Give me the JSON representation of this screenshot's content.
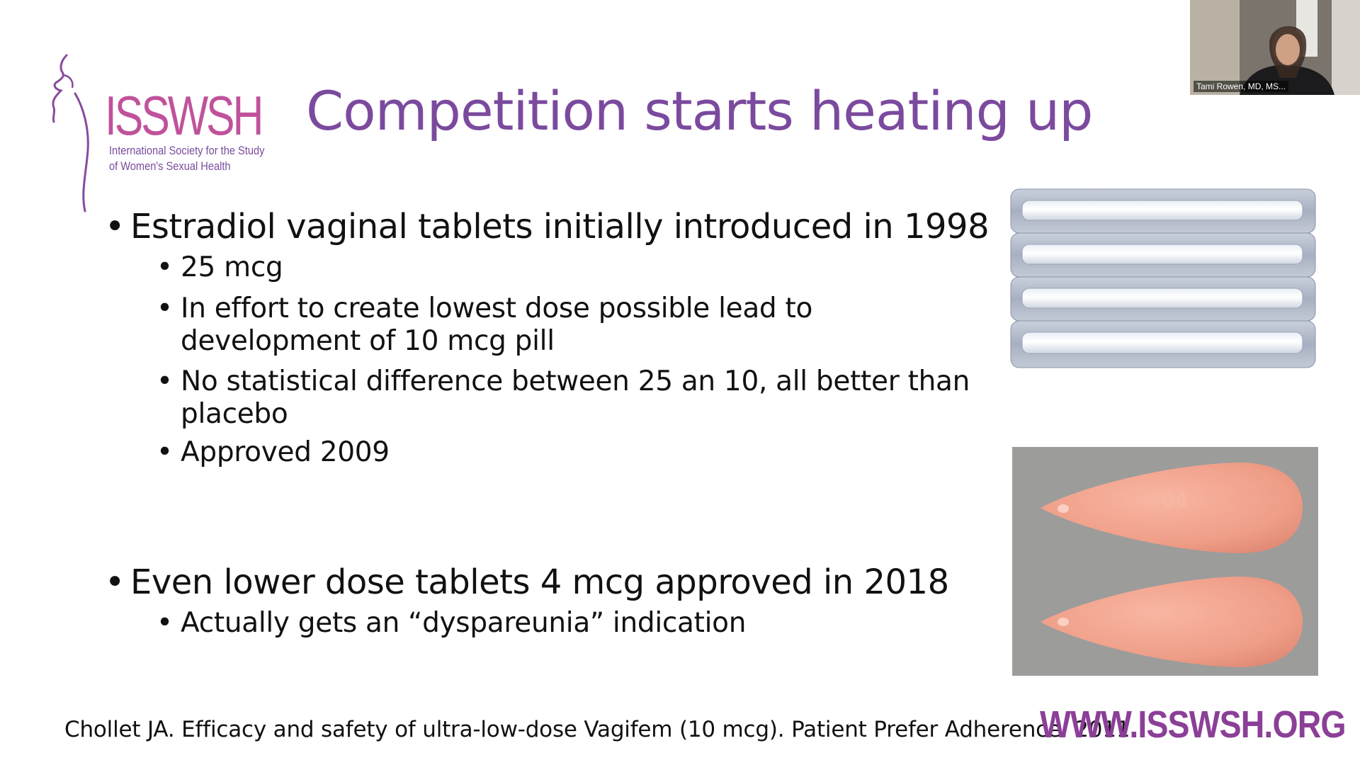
{
  "logo": {
    "name": "ISSWSH",
    "subtitle_line1": "International Society for the Study",
    "subtitle_line2": "of Women's Sexual Health"
  },
  "slide": {
    "title": "Competition starts heating up",
    "bullets": [
      {
        "text": "Estradiol vaginal tablets initially introduced in 1998",
        "subs": [
          {
            "line1": "25 mcg"
          },
          {
            "line1": "In effort to create lowest dose possible lead to",
            "line2": "development of 10 mcg pill"
          },
          {
            "line1": "No statistical difference between 25 an 10, all better than",
            "line2": "placebo"
          },
          {
            "line1": "Approved 2009"
          }
        ]
      },
      {
        "text": "Even lower dose tablets 4 mcg  approved in 2018",
        "subs": [
          {
            "line1": "Actually gets an “dyspareunia” indication"
          }
        ]
      }
    ],
    "bullet_glyph": "•",
    "pill_imprint": "04",
    "citation": "Chollet JA. Efficacy and safety of ultra-low-dose Vagifem (10 mcg). Patient Prefer Adherence. 2011.",
    "url": "WWW.ISSWSH.ORG"
  },
  "video": {
    "participant": "Tami Rowen, MD, MS..."
  },
  "colors": {
    "title": "#7b4a9e",
    "logo_pink": "#c0529b",
    "url_purple": "#8b3f97",
    "pill_pink": "#f0a08c",
    "pill_background": "#9c9c9b"
  }
}
